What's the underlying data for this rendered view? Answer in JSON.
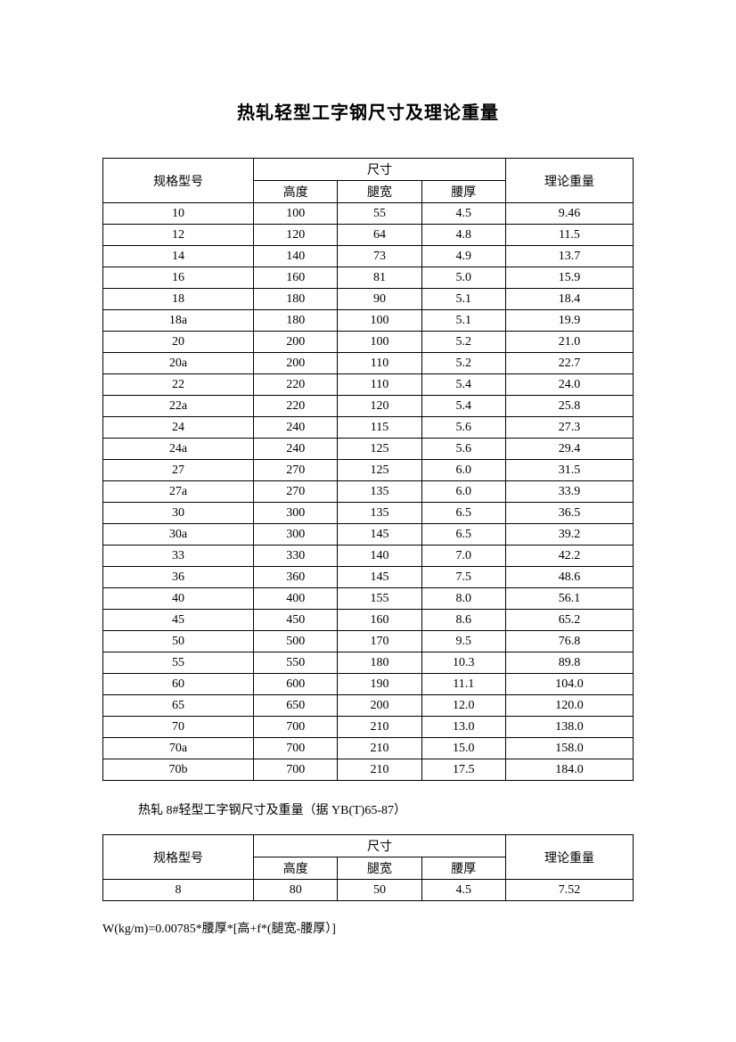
{
  "title": "热轧轻型工字钢尺寸及理论重量",
  "table1": {
    "headers": {
      "spec": "规格型号",
      "dim_group": "尺寸",
      "height": "高度",
      "leg_width": "腿宽",
      "waist_thick": "腰厚",
      "weight": "理论重量"
    },
    "rows": [
      [
        "10",
        "100",
        "55",
        "4.5",
        "9.46"
      ],
      [
        "12",
        "120",
        "64",
        "4.8",
        "11.5"
      ],
      [
        "14",
        "140",
        "73",
        "4.9",
        "13.7"
      ],
      [
        "16",
        "160",
        "81",
        "5.0",
        "15.9"
      ],
      [
        "18",
        "180",
        "90",
        "5.1",
        "18.4"
      ],
      [
        "18a",
        "180",
        "100",
        "5.1",
        "19.9"
      ],
      [
        "20",
        "200",
        "100",
        "5.2",
        "21.0"
      ],
      [
        "20a",
        "200",
        "110",
        "5.2",
        "22.7"
      ],
      [
        "22",
        "220",
        "110",
        "5.4",
        "24.0"
      ],
      [
        "22a",
        "220",
        "120",
        "5.4",
        "25.8"
      ],
      [
        "24",
        "240",
        "115",
        "5.6",
        "27.3"
      ],
      [
        "24a",
        "240",
        "125",
        "5.6",
        "29.4"
      ],
      [
        "27",
        "270",
        "125",
        "6.0",
        "31.5"
      ],
      [
        "27a",
        "270",
        "135",
        "6.0",
        "33.9"
      ],
      [
        "30",
        "300",
        "135",
        "6.5",
        "36.5"
      ],
      [
        "30a",
        "300",
        "145",
        "6.5",
        "39.2"
      ],
      [
        "33",
        "330",
        "140",
        "7.0",
        "42.2"
      ],
      [
        "36",
        "360",
        "145",
        "7.5",
        "48.6"
      ],
      [
        "40",
        "400",
        "155",
        "8.0",
        "56.1"
      ],
      [
        "45",
        "450",
        "160",
        "8.6",
        "65.2"
      ],
      [
        "50",
        "500",
        "170",
        "9.5",
        "76.8"
      ],
      [
        "55",
        "550",
        "180",
        "10.3",
        "89.8"
      ],
      [
        "60",
        "600",
        "190",
        "11.1",
        "104.0"
      ],
      [
        "65",
        "650",
        "200",
        "12.0",
        "120.0"
      ],
      [
        "70",
        "700",
        "210",
        "13.0",
        "138.0"
      ],
      [
        "70a",
        "700",
        "210",
        "15.0",
        "158.0"
      ],
      [
        "70b",
        "700",
        "210",
        "17.5",
        "184.0"
      ]
    ]
  },
  "subtitle": "热轧 8#轻型工字钢尺寸及重量（据 YB(T)65-87）",
  "table2": {
    "headers": {
      "spec": "规格型号",
      "dim_group": "尺寸",
      "height": "高度",
      "leg_width": "腿宽",
      "waist_thick": "腰厚",
      "weight": "理论重量"
    },
    "rows": [
      [
        "8",
        "80",
        "50",
        "4.5",
        "7.52"
      ]
    ]
  },
  "formula": "W(kg/m)=0.00785*腰厚*[高+f*(腿宽-腰厚）]"
}
